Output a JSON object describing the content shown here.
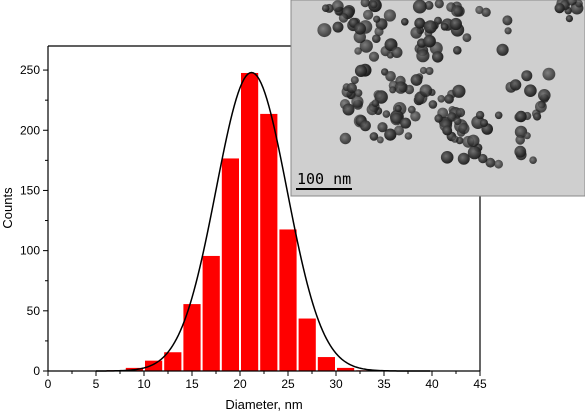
{
  "chart_data": {
    "type": "bar",
    "xlabel": "Diameter, nm",
    "ylabel": "Counts",
    "xlim": [
      0,
      45
    ],
    "ylim": [
      0,
      270
    ],
    "x_ticks": [
      0,
      5,
      10,
      15,
      20,
      25,
      30,
      35,
      40,
      45
    ],
    "y_ticks": [
      0,
      50,
      100,
      150,
      200,
      250
    ],
    "bin_width": 2,
    "bar_color": "#ff0000",
    "bins": [
      {
        "x_start": 6,
        "value": 1
      },
      {
        "x_start": 8,
        "value": 3
      },
      {
        "x_start": 10,
        "value": 9
      },
      {
        "x_start": 12,
        "value": 16
      },
      {
        "x_start": 14,
        "value": 56
      },
      {
        "x_start": 16,
        "value": 96
      },
      {
        "x_start": 18,
        "value": 177
      },
      {
        "x_start": 20,
        "value": 248
      },
      {
        "x_start": 22,
        "value": 214
      },
      {
        "x_start": 24,
        "value": 118
      },
      {
        "x_start": 26,
        "value": 44
      },
      {
        "x_start": 28,
        "value": 12
      },
      {
        "x_start": 30,
        "value": 3
      },
      {
        "x_start": 32,
        "value": 1
      }
    ],
    "fit_curve": {
      "type": "gaussian",
      "mean": 21.2,
      "sigma": 3.7,
      "amplitude": 248,
      "color": "#000000"
    },
    "grid": false
  },
  "inset": {
    "type": "tem-micrograph",
    "scale_bar_label": "100 nm"
  }
}
